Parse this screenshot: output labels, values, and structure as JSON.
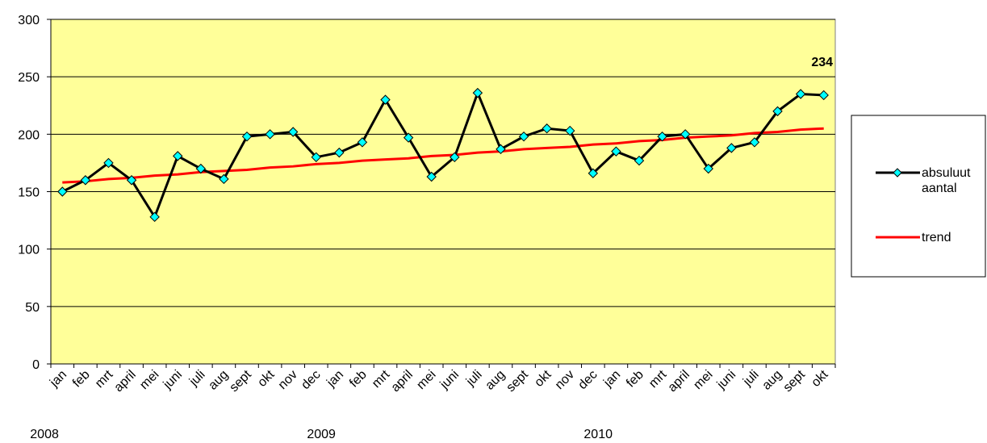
{
  "chart_data": {
    "type": "line",
    "categories": [
      "jan",
      "feb",
      "mrt",
      "april",
      "mei",
      "juni",
      "juli",
      "aug",
      "sept",
      "okt",
      "nov",
      "dec",
      "jan",
      "feb",
      "mrt",
      "april",
      "mei",
      "juni",
      "juli",
      "aug",
      "sept",
      "okt",
      "nov",
      "dec",
      "jan",
      "feb",
      "mrt",
      "april",
      "mei",
      "juni",
      "juli",
      "aug",
      "sept",
      "okt"
    ],
    "years": [
      {
        "label": "2008",
        "months": 12
      },
      {
        "label": "2009",
        "months": 12
      },
      {
        "label": "2010",
        "months": 10
      }
    ],
    "series": [
      {
        "name": "absuluut aantal",
        "color": "#000000",
        "marker_color": "#00ffff",
        "values": [
          150,
          160,
          175,
          160,
          128,
          181,
          170,
          161,
          198,
          200,
          202,
          180,
          184,
          193,
          230,
          197,
          163,
          180,
          236,
          187,
          198,
          205,
          203,
          166,
          185,
          177,
          198,
          200,
          170,
          188,
          193,
          220,
          235,
          234
        ]
      },
      {
        "name": "trend",
        "color": "#ff0000",
        "values": [
          158,
          159,
          161,
          162,
          164,
          165,
          167,
          168,
          169,
          171,
          172,
          174,
          175,
          177,
          178,
          179,
          181,
          182,
          184,
          185,
          187,
          188,
          189,
          191,
          192,
          194,
          195,
          197,
          198,
          199,
          201,
          202,
          204,
          205
        ]
      }
    ],
    "ylim": [
      0,
      300
    ],
    "yticks": [
      0,
      50,
      100,
      150,
      200,
      250,
      300
    ],
    "grid": true,
    "plot_background": "#ffff99",
    "legend": "right"
  }
}
